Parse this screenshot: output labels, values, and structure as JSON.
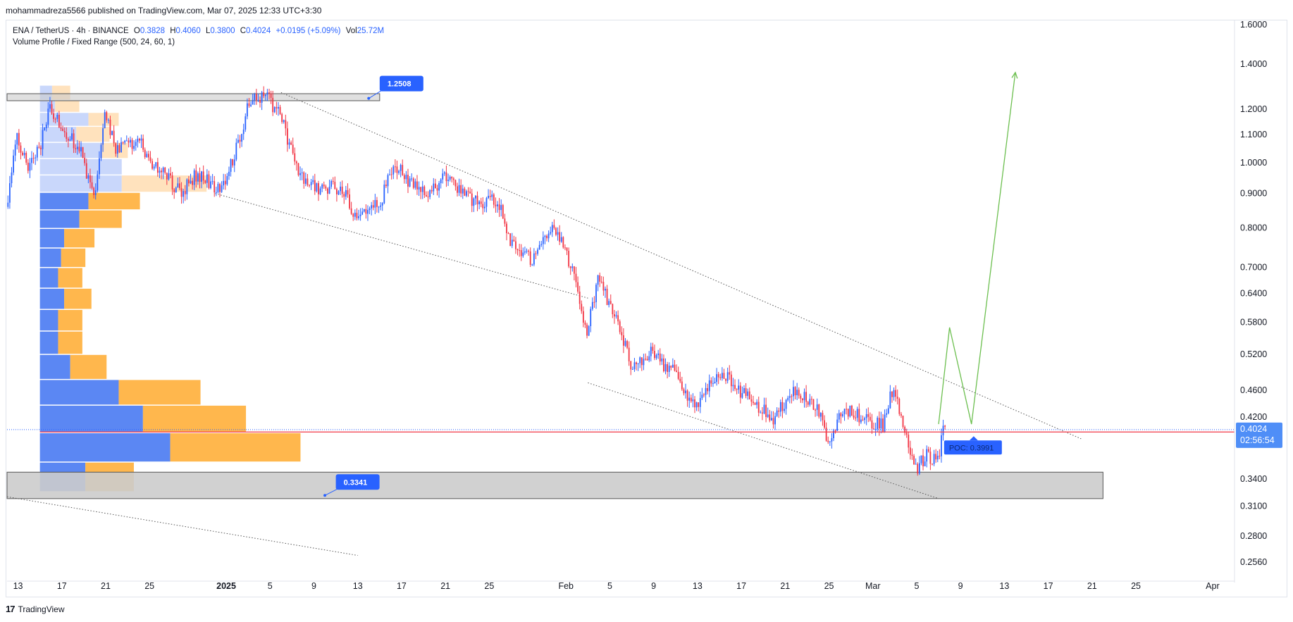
{
  "publisher": "mohammadreza5566 published on TradingView.com, Mar 07, 2025 12:33 UTC+3:30",
  "legend": {
    "symbol": "ENA / TetherUS · 4h · BINANCE",
    "o_label": "O",
    "o": "0.3828",
    "h_label": "H",
    "h": "0.4060",
    "l_label": "L",
    "l": "0.3800",
    "c_label": "C",
    "c": "0.4024",
    "change": "+0.0195 (+5.09%)",
    "vol_label": "Vol",
    "vol": "25.72M",
    "indicator": "Volume Profile / Fixed Range (500, 24, 60, 1)"
  },
  "footer": {
    "brand_mark": "17",
    "brand": "TradingView"
  },
  "colors": {
    "up": "#2962ff",
    "down": "#f23645",
    "vp_up": "#5b87f3",
    "vp_down": "#ffb74d",
    "vp_up_light": "#c9d7fb",
    "vp_down_light": "#ffe2bd",
    "poc_line": "#f23645",
    "zone": "#cccccc",
    "projection": "#6cbf4f",
    "label_bg": "#2962ff",
    "last_price_bg": "#4f8ef7"
  },
  "chart_data": {
    "type": "candlestick",
    "symbol": "ENA / TetherUS",
    "timeframe": "4h",
    "exchange": "BINANCE",
    "scale": "log",
    "ylim": [
      0.24,
      1.62
    ],
    "x_range": [
      "2024-12-12",
      "2025-04-03"
    ],
    "y_ticks": [
      "1.6000",
      "1.4000",
      "1.2000",
      "1.1000",
      "1.0000",
      "0.9000",
      "0.8000",
      "0.7000",
      "0.6400",
      "0.5800",
      "0.5200",
      "0.4600",
      "0.4200",
      "0.3400",
      "0.3100",
      "0.2800",
      "0.2560"
    ],
    "x_ticks": [
      {
        "label": "13",
        "date": "2024-12-13",
        "bold": false
      },
      {
        "label": "17",
        "date": "2024-12-17",
        "bold": false
      },
      {
        "label": "21",
        "date": "2024-12-21",
        "bold": false
      },
      {
        "label": "25",
        "date": "2024-12-25",
        "bold": false
      },
      {
        "label": "2025",
        "date": "2025-01-01",
        "bold": true
      },
      {
        "label": "5",
        "date": "2025-01-05",
        "bold": false
      },
      {
        "label": "9",
        "date": "2025-01-09",
        "bold": false
      },
      {
        "label": "13",
        "date": "2025-01-13",
        "bold": false
      },
      {
        "label": "17",
        "date": "2025-01-17",
        "bold": false
      },
      {
        "label": "21",
        "date": "2025-01-21",
        "bold": false
      },
      {
        "label": "25",
        "date": "2025-01-25",
        "bold": false
      },
      {
        "label": "Feb",
        "date": "2025-02-01",
        "bold": false
      },
      {
        "label": "5",
        "date": "2025-02-05",
        "bold": false
      },
      {
        "label": "9",
        "date": "2025-02-09",
        "bold": false
      },
      {
        "label": "13",
        "date": "2025-02-13",
        "bold": false
      },
      {
        "label": "17",
        "date": "2025-02-17",
        "bold": false
      },
      {
        "label": "21",
        "date": "2025-02-21",
        "bold": false
      },
      {
        "label": "25",
        "date": "2025-02-25",
        "bold": false
      },
      {
        "label": "Mar",
        "date": "2025-03-01",
        "bold": false
      },
      {
        "label": "5",
        "date": "2025-03-05",
        "bold": false
      },
      {
        "label": "9",
        "date": "2025-03-09",
        "bold": false
      },
      {
        "label": "13",
        "date": "2025-03-13",
        "bold": false
      },
      {
        "label": "17",
        "date": "2025-03-17",
        "bold": false
      },
      {
        "label": "21",
        "date": "2025-03-21",
        "bold": false
      },
      {
        "label": "25",
        "date": "2025-03-25",
        "bold": false
      },
      {
        "label": "Apr",
        "date": "2025-04-01",
        "bold": false
      }
    ],
    "price_path": [
      [
        "2024-12-12",
        0.86
      ],
      [
        "2024-12-13",
        1.08
      ],
      [
        "2024-12-14",
        0.98
      ],
      [
        "2024-12-15",
        1.05
      ],
      [
        "2024-12-16",
        1.2
      ],
      [
        "2024-12-17",
        1.14
      ],
      [
        "2024-12-18",
        1.08
      ],
      [
        "2024-12-19",
        1.02
      ],
      [
        "2024-12-20",
        0.88
      ],
      [
        "2024-12-21",
        1.18
      ],
      [
        "2024-12-22",
        1.05
      ],
      [
        "2024-12-23",
        1.06
      ],
      [
        "2024-12-24",
        1.08
      ],
      [
        "2024-12-25",
        1.02
      ],
      [
        "2024-12-26",
        0.97
      ],
      [
        "2024-12-27",
        0.94
      ],
      [
        "2024-12-28",
        0.9
      ],
      [
        "2024-12-29",
        0.95
      ],
      [
        "2024-12-30",
        0.96
      ],
      [
        "2024-12-31",
        0.92
      ],
      [
        "2025-01-01",
        0.93
      ],
      [
        "2025-01-02",
        1.05
      ],
      [
        "2025-01-03",
        1.2
      ],
      [
        "2025-01-04",
        1.25
      ],
      [
        "2025-01-05",
        1.24
      ],
      [
        "2025-01-06",
        1.17
      ],
      [
        "2025-01-07",
        1.05
      ],
      [
        "2025-01-08",
        0.95
      ],
      [
        "2025-01-09",
        0.93
      ],
      [
        "2025-01-10",
        0.91
      ],
      [
        "2025-01-11",
        0.92
      ],
      [
        "2025-01-12",
        0.89
      ],
      [
        "2025-01-13",
        0.81
      ],
      [
        "2025-01-14",
        0.87
      ],
      [
        "2025-01-15",
        0.86
      ],
      [
        "2025-01-16",
        0.96
      ],
      [
        "2025-01-17",
        0.97
      ],
      [
        "2025-01-18",
        0.93
      ],
      [
        "2025-01-19",
        0.9
      ],
      [
        "2025-01-20",
        0.92
      ],
      [
        "2025-01-21",
        0.95
      ],
      [
        "2025-01-22",
        0.93
      ],
      [
        "2025-01-23",
        0.89
      ],
      [
        "2025-01-24",
        0.87
      ],
      [
        "2025-01-25",
        0.88
      ],
      [
        "2025-01-26",
        0.87
      ],
      [
        "2025-01-27",
        0.77
      ],
      [
        "2025-01-28",
        0.74
      ],
      [
        "2025-01-29",
        0.72
      ],
      [
        "2025-01-30",
        0.76
      ],
      [
        "2025-01-31",
        0.8
      ],
      [
        "2025-02-01",
        0.75
      ],
      [
        "2025-02-02",
        0.66
      ],
      [
        "2025-02-03",
        0.56
      ],
      [
        "2025-02-04",
        0.67
      ],
      [
        "2025-02-05",
        0.62
      ],
      [
        "2025-02-06",
        0.57
      ],
      [
        "2025-02-07",
        0.5
      ],
      [
        "2025-02-08",
        0.51
      ],
      [
        "2025-02-09",
        0.53
      ],
      [
        "2025-02-10",
        0.5
      ],
      [
        "2025-02-11",
        0.49
      ],
      [
        "2025-02-12",
        0.45
      ],
      [
        "2025-02-13",
        0.44
      ],
      [
        "2025-02-14",
        0.47
      ],
      [
        "2025-02-15",
        0.49
      ],
      [
        "2025-02-16",
        0.48
      ],
      [
        "2025-02-17",
        0.46
      ],
      [
        "2025-02-18",
        0.45
      ],
      [
        "2025-02-19",
        0.43
      ],
      [
        "2025-02-20",
        0.42
      ],
      [
        "2025-02-21",
        0.44
      ],
      [
        "2025-02-22",
        0.46
      ],
      [
        "2025-02-23",
        0.45
      ],
      [
        "2025-02-24",
        0.43
      ],
      [
        "2025-02-25",
        0.39
      ],
      [
        "2025-02-26",
        0.42
      ],
      [
        "2025-02-27",
        0.43
      ],
      [
        "2025-02-28",
        0.42
      ],
      [
        "2025-03-01",
        0.41
      ],
      [
        "2025-03-02",
        0.41
      ],
      [
        "2025-03-03",
        0.47
      ],
      [
        "2025-03-04",
        0.4
      ],
      [
        "2025-03-05",
        0.35
      ],
      [
        "2025-03-06",
        0.37
      ],
      [
        "2025-03-07",
        0.36
      ],
      [
        "2025-03-07T12",
        0.4024
      ]
    ],
    "last_price": "0.4024",
    "countdown": "02:56:54",
    "poc": {
      "value": 0.3991,
      "label": "POC: 0.3991"
    },
    "level_labels": [
      {
        "label": "1.2508",
        "value": 1.2508
      },
      {
        "label": "0.3341",
        "value": 0.3341
      }
    ],
    "zones": [
      {
        "name": "resistance",
        "from": "2024-12-12",
        "to": "2025-01-15",
        "low": 1.235,
        "high": 1.265
      },
      {
        "name": "support",
        "from": "2024-12-12",
        "to": "2025-03-22",
        "low": 0.318,
        "high": 0.348
      }
    ],
    "trendlines": [
      {
        "name": "upper",
        "p1": [
          "2025-01-06",
          1.27
        ],
        "p2": [
          "2025-03-20",
          0.39
        ]
      },
      {
        "name": "mid",
        "p1": [
          "2024-12-31",
          0.9
        ],
        "p2": [
          "2025-02-03",
          0.63
        ]
      },
      {
        "name": "lower",
        "p1": [
          "2025-02-03",
          0.472
        ],
        "p2": [
          "2025-03-07",
          0.318
        ]
      },
      {
        "name": "far",
        "p1": [
          "2024-12-12",
          0.32
        ],
        "p2": [
          "2025-01-13",
          0.262
        ]
      }
    ],
    "projection": [
      [
        "2025-03-07",
        0.41
      ],
      [
        "2025-03-08",
        0.57
      ],
      [
        "2025-03-10",
        0.41
      ],
      [
        "2025-03-14",
        1.36
      ]
    ],
    "volume_profile": {
      "start": "2024-12-15",
      "rows": [
        {
          "price": 0.342,
          "up": 0.15,
          "down": 0.16
        },
        {
          "price": 0.378,
          "up": 0.43,
          "down": 0.43
        },
        {
          "price": 0.418,
          "up": 0.34,
          "down": 0.34
        },
        {
          "price": 0.456,
          "up": 0.26,
          "down": 0.27
        },
        {
          "price": 0.498,
          "up": 0.1,
          "down": 0.12
        },
        {
          "price": 0.541,
          "up": 0.06,
          "down": 0.08
        },
        {
          "price": 0.584,
          "up": 0.06,
          "down": 0.08
        },
        {
          "price": 0.627,
          "up": 0.08,
          "down": 0.09
        },
        {
          "price": 0.675,
          "up": 0.06,
          "down": 0.08
        },
        {
          "price": 0.722,
          "up": 0.07,
          "down": 0.08
        },
        {
          "price": 0.771,
          "up": 0.08,
          "down": 0.1
        },
        {
          "price": 0.825,
          "up": 0.13,
          "down": 0.14
        },
        {
          "price": 0.875,
          "up": 0.16,
          "down": 0.17
        },
        {
          "price": 0.93,
          "up": 0.27,
          "down": 0.28
        },
        {
          "price": 0.985,
          "up": 0.27,
          "down": 0.0
        },
        {
          "price": 1.04,
          "up": 0.2,
          "down": 0.09
        },
        {
          "price": 1.1,
          "up": 0.12,
          "down": 0.11
        },
        {
          "price": 1.16,
          "up": 0.16,
          "down": 0.1
        },
        {
          "price": 1.21,
          "up": 0.05,
          "down": 0.08
        },
        {
          "price": 1.26,
          "up": 0.04,
          "down": 0.06
        }
      ]
    }
  }
}
